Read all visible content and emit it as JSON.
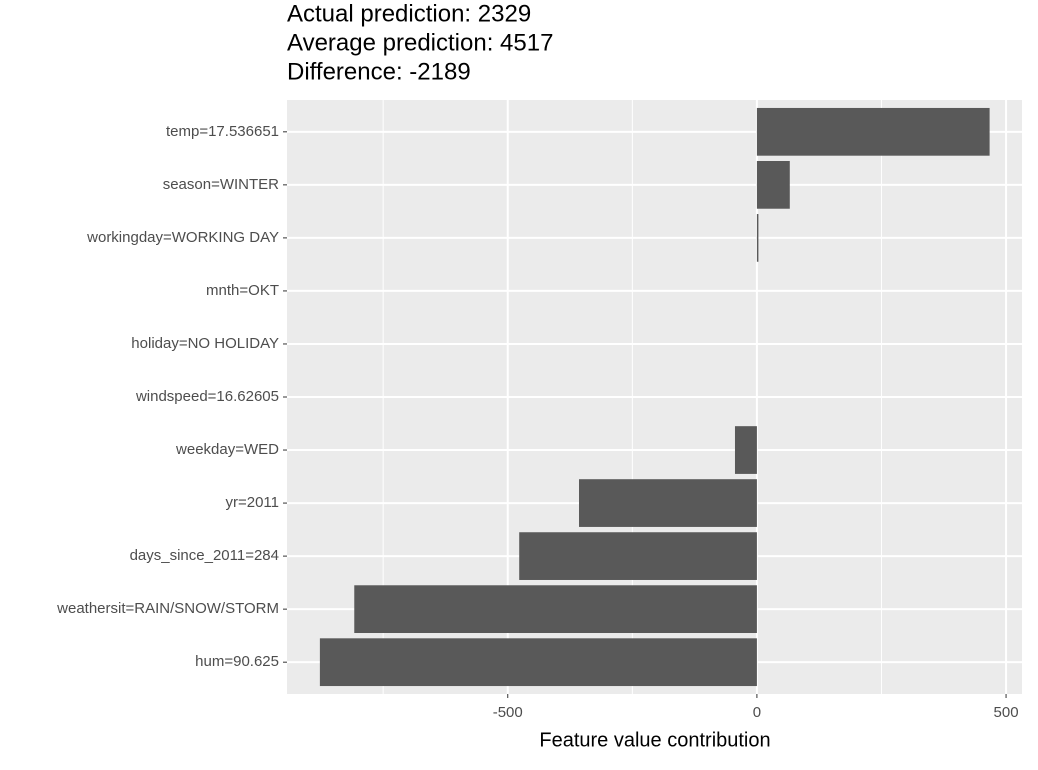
{
  "chart_data": {
    "type": "barh",
    "title": [
      "Actual prediction: 2329",
      "Average prediction: 4517",
      "Difference: -2189"
    ],
    "xlabel": "Feature value contribution",
    "categories": [
      "temp=17.536651",
      "season=WINTER",
      "workingday=WORKING DAY",
      "mnth=OKT",
      "holiday=NO HOLIDAY",
      "windspeed=16.62605",
      "weekday=WED",
      "yr=2011",
      "days_since_2011=284",
      "weathersit=RAIN/SNOW/STORM",
      "hum=90.625"
    ],
    "values": [
      467,
      66,
      3,
      0,
      0,
      0,
      -44,
      -357,
      -477,
      -808,
      -877
    ],
    "color": "#595959",
    "xlim": [
      -943,
      532
    ],
    "xticks": [
      -500,
      0,
      500
    ],
    "x_minor_ticks": [
      -750,
      -250,
      250
    ],
    "grid": true,
    "panel_color": "#ebebeb"
  }
}
